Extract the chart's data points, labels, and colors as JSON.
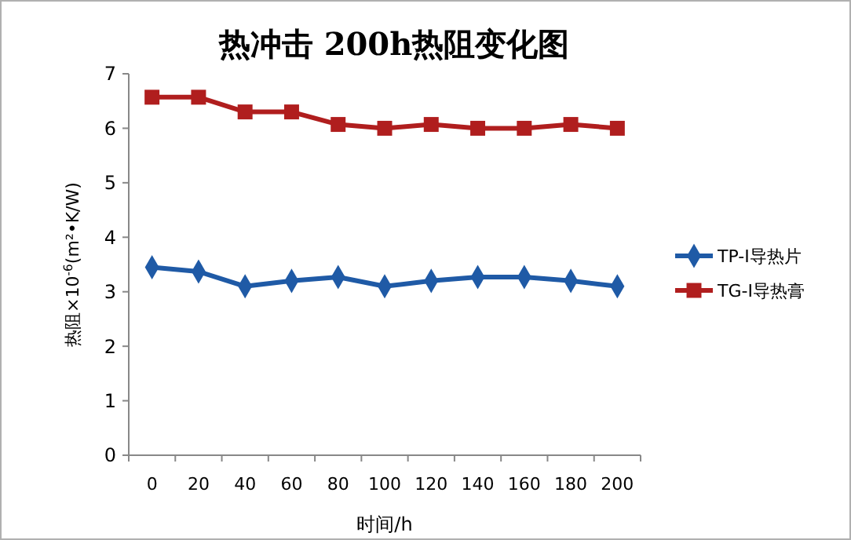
{
  "chart_data": {
    "type": "line",
    "title": "热冲击 200h热阻变化图",
    "xlabel": "时间/h",
    "ylabel": "热阻×10$^{-6}$(m²•K/W)",
    "categories": [
      "0",
      "20",
      "40",
      "60",
      "80",
      "100",
      "120",
      "140",
      "160",
      "180",
      "200"
    ],
    "series": [
      {
        "name": "TP-I导热片",
        "color": "#1f5aa6",
        "marker": "diamond",
        "values": [
          3.45,
          3.37,
          3.1,
          3.2,
          3.27,
          3.1,
          3.2,
          3.27,
          3.27,
          3.2,
          3.1
        ]
      },
      {
        "name": "TG-I导热膏",
        "color": "#b01e1e",
        "marker": "square",
        "values": [
          6.57,
          6.57,
          6.3,
          6.3,
          6.07,
          6,
          6.07,
          6,
          6,
          6.07,
          6
        ]
      }
    ],
    "ylim": [
      0,
      7
    ],
    "yticks": [
      0,
      1,
      2,
      3,
      4,
      5,
      6,
      7
    ],
    "grid": false,
    "legend": "right"
  }
}
